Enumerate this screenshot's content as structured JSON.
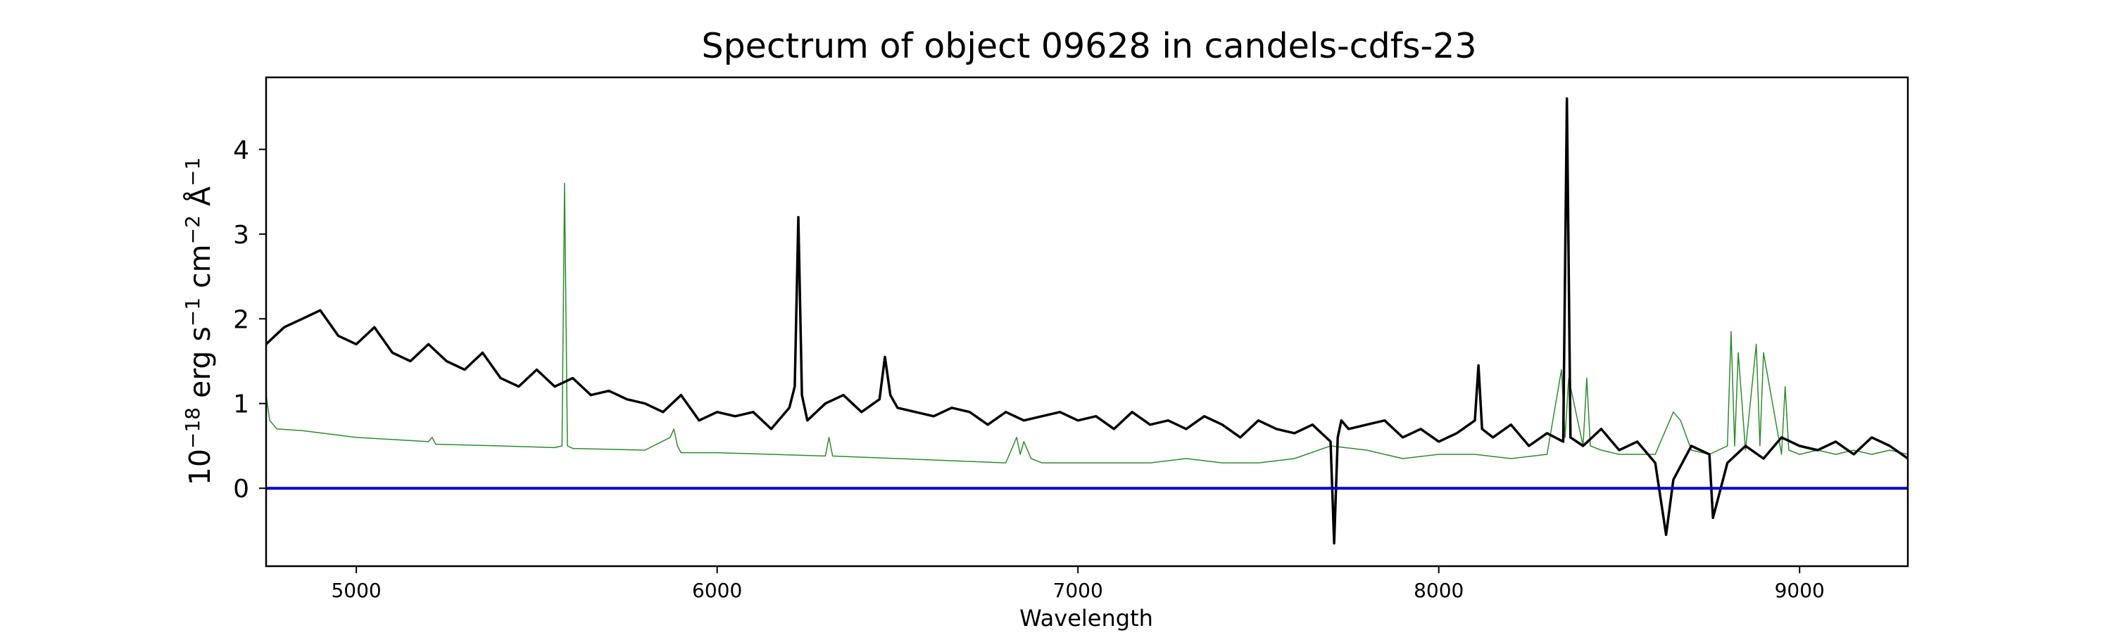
{
  "chart_data": {
    "type": "line",
    "title": "Spectrum of object 09628 in candels-cdfs-23",
    "xlabel": "Wavelength",
    "ylabel": {
      "base": "10",
      "exp1": "−18",
      "erg": " erg s",
      "exp2": "−1",
      "cm": " cm",
      "exp3": "−2",
      "ang": " Å",
      "exp4": "−1"
    },
    "xlim": [
      4750,
      9300
    ],
    "ylim": [
      -0.92,
      4.85
    ],
    "x_ticks": [
      5000,
      6000,
      7000,
      8000,
      9000
    ],
    "y_ticks": [
      0,
      1,
      2,
      3,
      4
    ],
    "x_tick_labels": [
      "5000",
      "6000",
      "7000",
      "8000",
      "9000"
    ],
    "y_tick_labels": [
      "0",
      "1",
      "2",
      "3",
      "4"
    ],
    "grid": false,
    "colors": {
      "flux": "#000000",
      "sky": "#2e8b2e",
      "zero": "#0000cc"
    },
    "series": [
      {
        "style": "black-thick",
        "x": [
          4750,
          4800,
          4850,
          4900,
          4950,
          5000,
          5050,
          5100,
          5150,
          5200,
          5250,
          5300,
          5350,
          5400,
          5450,
          5500,
          5550,
          5600,
          5650,
          5700,
          5750,
          5800,
          5850,
          5900,
          5950,
          6000,
          6050,
          6100,
          6150,
          6200,
          6215,
          6225,
          6235,
          6250,
          6300,
          6350,
          6400,
          6450,
          6465,
          6480,
          6500,
          6550,
          6600,
          6650,
          6700,
          6750,
          6800,
          6850,
          6900,
          6950,
          7000,
          7050,
          7100,
          7150,
          7200,
          7250,
          7300,
          7350,
          7400,
          7450,
          7500,
          7550,
          7600,
          7650,
          7700,
          7710,
          7720,
          7730,
          7750,
          7800,
          7850,
          7900,
          7950,
          8000,
          8050,
          8100,
          8110,
          8120,
          8150,
          8200,
          8250,
          8300,
          8345,
          8355,
          8365,
          8400,
          8450,
          8500,
          8550,
          8600,
          8630,
          8650,
          8700,
          8750,
          8760,
          8800,
          8850,
          8900,
          8950,
          9000,
          9050,
          9100,
          9150,
          9200,
          9250,
          9300
        ],
        "y": [
          1.7,
          1.9,
          2.0,
          2.1,
          1.8,
          1.7,
          1.9,
          1.6,
          1.5,
          1.7,
          1.5,
          1.4,
          1.6,
          1.3,
          1.2,
          1.4,
          1.2,
          1.3,
          1.1,
          1.15,
          1.05,
          1.0,
          0.9,
          1.1,
          0.8,
          0.9,
          0.85,
          0.9,
          0.7,
          0.95,
          1.2,
          3.2,
          1.1,
          0.8,
          1.0,
          1.1,
          0.9,
          1.05,
          1.55,
          1.1,
          0.95,
          0.9,
          0.85,
          0.95,
          0.9,
          0.75,
          0.9,
          0.8,
          0.85,
          0.9,
          0.8,
          0.85,
          0.7,
          0.9,
          0.75,
          0.8,
          0.7,
          0.85,
          0.75,
          0.6,
          0.8,
          0.7,
          0.65,
          0.75,
          0.55,
          -0.65,
          0.6,
          0.8,
          0.7,
          0.75,
          0.8,
          0.6,
          0.7,
          0.55,
          0.65,
          0.8,
          1.45,
          0.7,
          0.6,
          0.75,
          0.5,
          0.65,
          0.55,
          4.6,
          0.6,
          0.5,
          0.7,
          0.45,
          0.55,
          0.3,
          -0.55,
          0.1,
          0.5,
          0.4,
          -0.35,
          0.3,
          0.5,
          0.35,
          0.6,
          0.5,
          0.45,
          0.55,
          0.4,
          0.6,
          0.5,
          0.35
        ]
      },
      {
        "style": "green-thin",
        "x": [
          4750,
          4760,
          4780,
          4850,
          5000,
          5200,
          5210,
          5220,
          5400,
          5550,
          5570,
          5577,
          5585,
          5600,
          5800,
          5870,
          5880,
          5890,
          5900,
          6000,
          6300,
          6310,
          6320,
          6500,
          6800,
          6830,
          6840,
          6850,
          6870,
          6900,
          7000,
          7200,
          7300,
          7400,
          7500,
          7600,
          7700,
          7800,
          7900,
          8000,
          8100,
          8200,
          8300,
          8340,
          8350,
          8360,
          8400,
          8410,
          8420,
          8450,
          8500,
          8600,
          8650,
          8670,
          8700,
          8750,
          8800,
          8810,
          8820,
          8830,
          8850,
          8880,
          8890,
          8900,
          8950,
          8960,
          8970,
          9000,
          9050,
          9100,
          9150,
          9200,
          9250,
          9300
        ],
        "y": [
          1.1,
          0.8,
          0.7,
          0.68,
          0.6,
          0.55,
          0.6,
          0.52,
          0.5,
          0.48,
          0.5,
          3.6,
          0.5,
          0.47,
          0.45,
          0.6,
          0.7,
          0.5,
          0.42,
          0.42,
          0.38,
          0.6,
          0.38,
          0.35,
          0.3,
          0.6,
          0.4,
          0.55,
          0.35,
          0.3,
          0.3,
          0.3,
          0.35,
          0.3,
          0.3,
          0.35,
          0.5,
          0.45,
          0.35,
          0.4,
          0.4,
          0.35,
          0.4,
          1.4,
          0.6,
          1.3,
          0.5,
          1.3,
          0.5,
          0.45,
          0.4,
          0.4,
          0.9,
          0.8,
          0.45,
          0.4,
          0.5,
          1.85,
          0.5,
          1.6,
          0.45,
          1.7,
          0.5,
          1.6,
          0.4,
          1.2,
          0.45,
          0.4,
          0.45,
          0.4,
          0.45,
          0.4,
          0.45,
          0.4
        ]
      },
      {
        "style": "blue-zero",
        "x": [
          4750,
          9300
        ],
        "y": [
          0,
          0
        ]
      }
    ]
  }
}
